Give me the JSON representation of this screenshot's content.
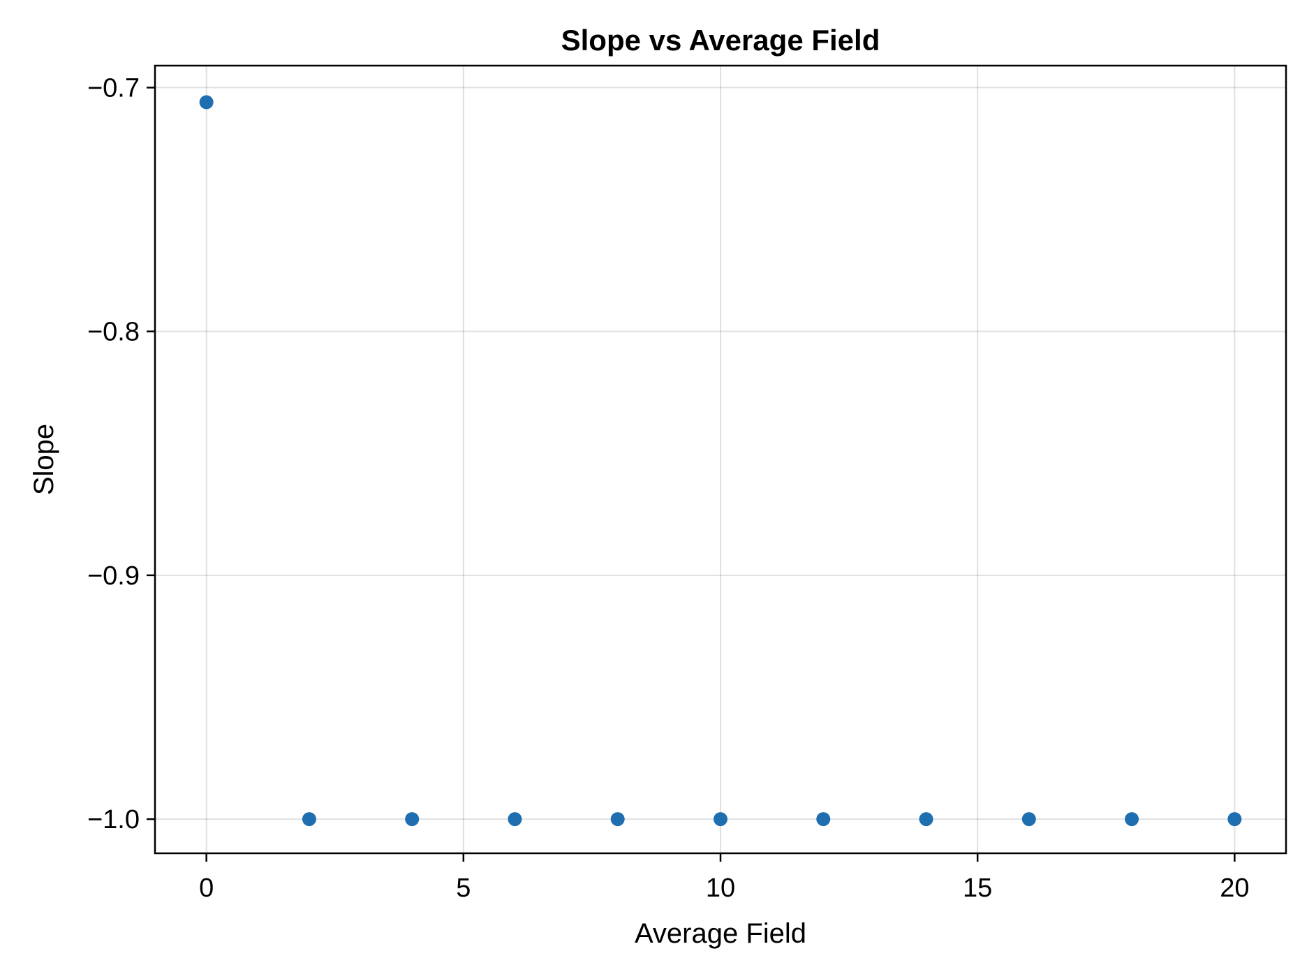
{
  "chart_data": {
    "type": "scatter",
    "title": "Slope vs Average Field",
    "xlabel": "Average Field",
    "ylabel": "Slope",
    "x": [
      0,
      2,
      4,
      6,
      8,
      10,
      12,
      14,
      16,
      18,
      20
    ],
    "y": [
      -0.706,
      -1.0,
      -1.0,
      -1.0,
      -1.0,
      -1.0,
      -1.0,
      -1.0,
      -1.0,
      -1.0,
      -1.0
    ],
    "xlim": [
      -1,
      21
    ],
    "ylim": [
      -1.014,
      -0.691
    ],
    "xticks": [
      0,
      5,
      10,
      15,
      20
    ],
    "xtick_labels": [
      "0",
      "5",
      "10",
      "15",
      "20"
    ],
    "yticks": [
      -0.7,
      -0.8,
      -0.9,
      -1.0
    ],
    "ytick_labels": [
      "−0.7",
      "−0.8",
      "−0.9",
      "−1.0"
    ],
    "grid": true,
    "marker_color": "#1f6fb0"
  }
}
